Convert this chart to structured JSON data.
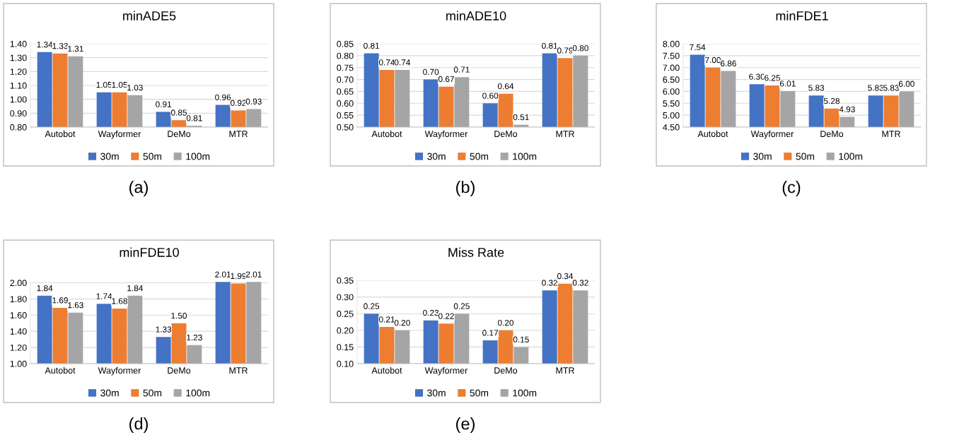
{
  "chart_data": [
    {
      "type": "bar",
      "title": "minADE5",
      "categories": [
        "Autobot",
        "Wayformer",
        "DeMo",
        "MTR"
      ],
      "ylim": [
        0.8,
        1.4
      ],
      "yticks": [
        {
          "value": 0.8,
          "label": "0.80"
        },
        {
          "value": 0.9,
          "label": "0.90"
        },
        {
          "value": 1.0,
          "label": "1.00"
        },
        {
          "value": 1.1,
          "label": "1.10"
        },
        {
          "value": 1.2,
          "label": "1.20"
        },
        {
          "value": 1.3,
          "label": "1.30"
        },
        {
          "value": 1.4,
          "label": "1.40"
        }
      ],
      "grid": "y",
      "legend": "bottom",
      "annotations": [
        "(a)"
      ],
      "series": [
        {
          "name": "30m",
          "color": "#4472c4",
          "values": [
            1.34,
            1.05,
            0.91,
            0.96
          ],
          "value_labels": [
            "1.34",
            "1.05",
            "0.91",
            "0.96"
          ]
        },
        {
          "name": "50m",
          "color": "#ed7d31",
          "values": [
            1.33,
            1.05,
            0.85,
            0.92
          ],
          "value_labels": [
            "1.33",
            "1.05",
            "0.85",
            "0.92"
          ]
        },
        {
          "name": "100m",
          "color": "#a5a5a5",
          "values": [
            1.31,
            1.03,
            0.81,
            0.93
          ],
          "value_labels": [
            "1.31",
            "1.03",
            "0.81",
            "0.93"
          ]
        }
      ]
    },
    {
      "type": "bar",
      "title": "minADE10",
      "categories": [
        "Autobot",
        "Wayformer",
        "DeMo",
        "MTR"
      ],
      "ylim": [
        0.5,
        0.85
      ],
      "yticks": [
        {
          "value": 0.5,
          "label": "0.50"
        },
        {
          "value": 0.55,
          "label": "0.55"
        },
        {
          "value": 0.6,
          "label": "0.60"
        },
        {
          "value": 0.65,
          "label": "0.65"
        },
        {
          "value": 0.7,
          "label": "0.70"
        },
        {
          "value": 0.75,
          "label": "0.75"
        },
        {
          "value": 0.8,
          "label": "0.80"
        },
        {
          "value": 0.85,
          "label": "0.85"
        }
      ],
      "grid": "y",
      "legend": "bottom",
      "annotations": [
        "(b)"
      ],
      "series": [
        {
          "name": "30m",
          "color": "#4472c4",
          "values": [
            0.81,
            0.7,
            0.6,
            0.81
          ],
          "value_labels": [
            "0.81",
            "0.70",
            "0.60",
            "0.81"
          ]
        },
        {
          "name": "50m",
          "color": "#ed7d31",
          "values": [
            0.74,
            0.67,
            0.64,
            0.79
          ],
          "value_labels": [
            "0.74",
            "0.67",
            "0.64",
            "0.79"
          ]
        },
        {
          "name": "100m",
          "color": "#a5a5a5",
          "values": [
            0.74,
            0.71,
            0.51,
            0.8
          ],
          "value_labels": [
            "0.74",
            "0.71",
            "0.51",
            "0.80"
          ]
        }
      ]
    },
    {
      "type": "bar",
      "title": "minFDE1",
      "categories": [
        "Autobot",
        "Wayformer",
        "DeMo",
        "MTR"
      ],
      "ylim": [
        4.5,
        8.0
      ],
      "yticks": [
        {
          "value": 4.5,
          "label": "4.50"
        },
        {
          "value": 5.0,
          "label": "5.00"
        },
        {
          "value": 5.5,
          "label": "5.50"
        },
        {
          "value": 6.0,
          "label": "6.00"
        },
        {
          "value": 6.5,
          "label": "6.50"
        },
        {
          "value": 7.0,
          "label": "7.00"
        },
        {
          "value": 7.5,
          "label": "7.50"
        },
        {
          "value": 8.0,
          "label": "8.00"
        }
      ],
      "grid": "y",
      "legend": "bottom",
      "annotations": [
        "(c)"
      ],
      "series": [
        {
          "name": "30m",
          "color": "#4472c4",
          "values": [
            7.54,
            6.3,
            5.83,
            5.83
          ],
          "value_labels": [
            "7.54",
            "6.30",
            "5.83",
            "5.83"
          ]
        },
        {
          "name": "50m",
          "color": "#ed7d31",
          "values": [
            7.0,
            6.25,
            5.28,
            5.83
          ],
          "value_labels": [
            "7.00",
            "6.25",
            "5.28",
            "5.83"
          ]
        },
        {
          "name": "100m",
          "color": "#a5a5a5",
          "values": [
            6.86,
            6.01,
            4.93,
            6.0
          ],
          "value_labels": [
            "6.86",
            "6.01",
            "4.93",
            "6.00"
          ]
        }
      ]
    },
    {
      "type": "bar",
      "title": "minFDE10",
      "categories": [
        "Autobot",
        "Wayformer",
        "DeMo",
        "MTR"
      ],
      "ylim": [
        1.0,
        2.03
      ],
      "yticks": [
        {
          "value": 1.0,
          "label": "1.00"
        },
        {
          "value": 1.2,
          "label": "1.20"
        },
        {
          "value": 1.4,
          "label": "1.40"
        },
        {
          "value": 1.6,
          "label": "1.60"
        },
        {
          "value": 1.8,
          "label": "1.80"
        },
        {
          "value": 2.0,
          "label": "2.00"
        }
      ],
      "grid": "y",
      "legend": "bottom",
      "annotations": [
        "(d)"
      ],
      "series": [
        {
          "name": "30m",
          "color": "#4472c4",
          "values": [
            1.84,
            1.74,
            1.33,
            2.01
          ],
          "value_labels": [
            "1.84",
            "1.74",
            "1.33",
            "2.01"
          ]
        },
        {
          "name": "50m",
          "color": "#ed7d31",
          "values": [
            1.69,
            1.68,
            1.5,
            1.99
          ],
          "value_labels": [
            "1.69",
            "1.68",
            "1.50",
            "1.99"
          ]
        },
        {
          "name": "100m",
          "color": "#a5a5a5",
          "values": [
            1.63,
            1.84,
            1.23,
            2.01
          ],
          "value_labels": [
            "1.63",
            "1.84",
            "1.23",
            "2.01"
          ]
        }
      ]
    },
    {
      "type": "bar",
      "title": "Miss Rate",
      "categories": [
        "Autobot",
        "Wayformer",
        "DeMo",
        "MTR"
      ],
      "ylim": [
        0.1,
        0.35
      ],
      "yticks": [
        {
          "value": 0.1,
          "label": "0.10"
        },
        {
          "value": 0.15,
          "label": "0.15"
        },
        {
          "value": 0.2,
          "label": "0.20"
        },
        {
          "value": 0.25,
          "label": "0.25"
        },
        {
          "value": 0.3,
          "label": "0.30"
        },
        {
          "value": 0.35,
          "label": "0.35"
        }
      ],
      "grid": "y",
      "legend": "bottom",
      "annotations": [
        "(e)"
      ],
      "series": [
        {
          "name": "30m",
          "color": "#4472c4",
          "values": [
            0.25,
            0.23,
            0.17,
            0.32
          ],
          "value_labels": [
            "0.25",
            "0.23",
            "0.17",
            "0.32"
          ]
        },
        {
          "name": "50m",
          "color": "#ed7d31",
          "values": [
            0.21,
            0.22,
            0.2,
            0.34
          ],
          "value_labels": [
            "0.21",
            "0.22",
            "0.20",
            "0.34"
          ]
        },
        {
          "name": "100m",
          "color": "#a5a5a5",
          "values": [
            0.2,
            0.25,
            0.15,
            0.32
          ],
          "value_labels": [
            "0.20",
            "0.25",
            "0.15",
            "0.32"
          ]
        }
      ]
    }
  ]
}
